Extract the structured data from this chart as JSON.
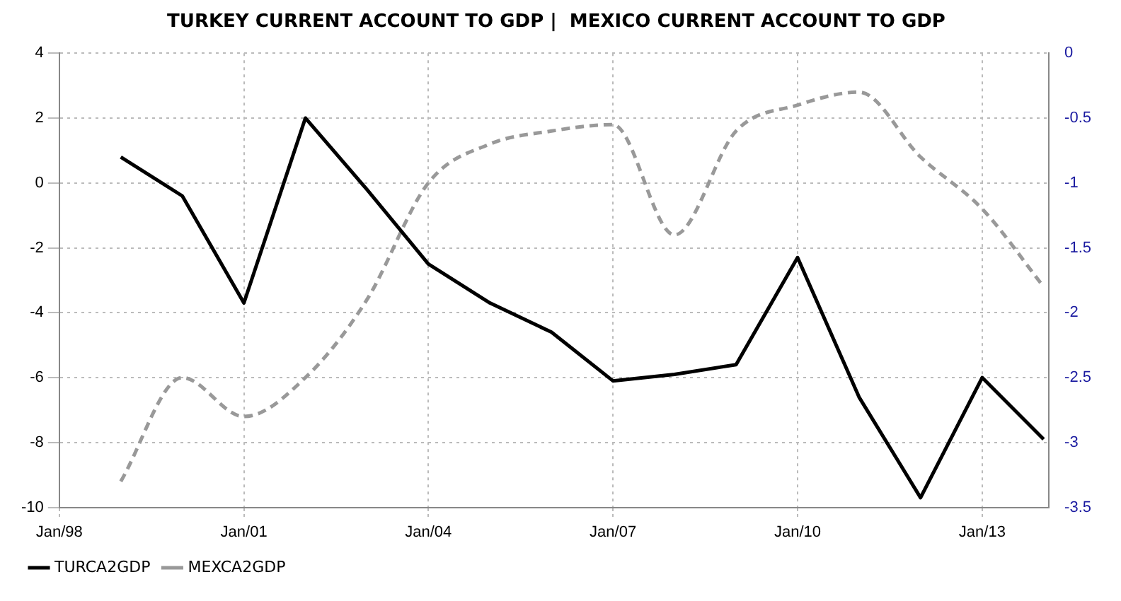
{
  "chart_data": {
    "type": "line",
    "title": "TURKEY CURRENT ACCOUNT TO GDP |  MEXICO CURRENT ACCOUNT TO GDP",
    "x": [
      "1999-01",
      "2000-01",
      "2001-01",
      "2002-01",
      "2003-01",
      "2004-01",
      "2005-01",
      "2006-01",
      "2007-01",
      "2008-01",
      "2009-01",
      "2010-01",
      "2011-01",
      "2012-01",
      "2013-01",
      "2014-01"
    ],
    "series": [
      {
        "name": "TURCA2GDP",
        "color": "#000000",
        "line_style": "solid",
        "values": [
          0.8,
          -0.4,
          -3.7,
          2.0,
          -0.2,
          -2.5,
          -3.7,
          -4.6,
          -6.1,
          -5.9,
          -5.6,
          -2.3,
          -6.6,
          -9.7,
          -6.0,
          -7.9
        ]
      },
      {
        "name": "MEXCA2GDP",
        "color": "#999999",
        "line_style": "dashed",
        "axis": "y2",
        "values": [
          -3.3,
          -2.5,
          -2.8,
          -2.5,
          -1.9,
          -1.0,
          -0.7,
          -0.6,
          -0.55,
          -1.4,
          -0.6,
          -0.4,
          -0.3,
          -0.8,
          -1.2,
          -1.8
        ]
      }
    ],
    "xlim": [
      "1998-01",
      "2014-02"
    ],
    "xticks": [
      {
        "value": "1998-01",
        "label": "Jan/98"
      },
      {
        "value": "2001-01",
        "label": "Jan/01"
      },
      {
        "value": "2004-01",
        "label": "Jan/04"
      },
      {
        "value": "2007-01",
        "label": "Jan/07"
      },
      {
        "value": "2010-01",
        "label": "Jan/10"
      },
      {
        "value": "2013-01",
        "label": "Jan/13"
      }
    ],
    "ylim": [
      -10,
      4
    ],
    "yticks": [
      -10,
      -8,
      -6,
      -4,
      -2,
      0,
      2,
      4
    ],
    "y2lim": [
      -3.5,
      0
    ],
    "y2ticks": [
      -3.5,
      -3,
      -2.5,
      -2,
      -1.5,
      -1,
      -0.5,
      0
    ],
    "grid": true,
    "legend": "bottom left",
    "marker": "none"
  }
}
